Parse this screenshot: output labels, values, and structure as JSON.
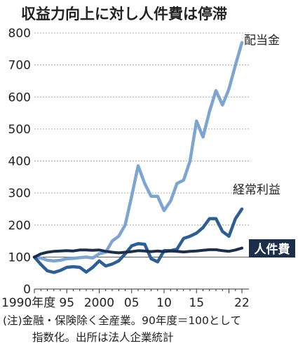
{
  "chart_data": {
    "type": "line",
    "title": "収益力向上に対し人件費は停滞",
    "xlabel": "",
    "ylabel": "",
    "x_range": [
      1990,
      2022
    ],
    "ylim": [
      0,
      800
    ],
    "y_ticks": [
      0,
      100,
      200,
      300,
      400,
      500,
      600,
      700,
      800
    ],
    "x_ticks": [
      {
        "year": 1990,
        "label": "1990年度"
      },
      {
        "year": 1995,
        "label": "95"
      },
      {
        "year": 2000,
        "label": "2000"
      },
      {
        "year": 2005,
        "label": "05"
      },
      {
        "year": 2010,
        "label": "10"
      },
      {
        "year": 2015,
        "label": "15"
      },
      {
        "year": 2022,
        "label": "22"
      }
    ],
    "grid": "horizontal dotted",
    "x": [
      1990,
      1991,
      1992,
      1993,
      1994,
      1995,
      1996,
      1997,
      1998,
      1999,
      2000,
      2001,
      2002,
      2003,
      2004,
      2005,
      2006,
      2007,
      2008,
      2009,
      2010,
      2011,
      2012,
      2013,
      2014,
      2015,
      2016,
      2017,
      2018,
      2019,
      2020,
      2021,
      2022
    ],
    "series": [
      {
        "name": "配当金",
        "color": "#7ea5d0",
        "values": [
          100,
          97,
          90,
          88,
          90,
          95,
          96,
          98,
          100,
          97,
          110,
          115,
          150,
          165,
          200,
          290,
          385,
          330,
          290,
          290,
          245,
          275,
          330,
          340,
          400,
          525,
          475,
          555,
          620,
          575,
          625,
          700,
          770
        ]
      },
      {
        "name": "経常利益",
        "color": "#2d5f94",
        "values": [
          100,
          77,
          57,
          52,
          58,
          68,
          70,
          68,
          53,
          68,
          88,
          72,
          78,
          88,
          110,
          135,
          142,
          140,
          95,
          85,
          120,
          120,
          125,
          158,
          165,
          175,
          192,
          220,
          220,
          180,
          165,
          220,
          250
        ]
      },
      {
        "name": "人件費",
        "color": "#1c2e4a",
        "values": [
          100,
          110,
          115,
          118,
          119,
          120,
          119,
          122,
          122,
          121,
          122,
          118,
          115,
          113,
          115,
          117,
          120,
          119,
          117,
          119,
          117,
          119,
          118,
          116,
          118,
          119,
          121,
          123,
          123,
          120,
          118,
          122,
          128
        ]
      }
    ],
    "baseline": 100,
    "note_lines": [
      "(注)金融・保険除く全産業。90年度＝100として",
      "指数化。出所は法人企業統計"
    ]
  }
}
